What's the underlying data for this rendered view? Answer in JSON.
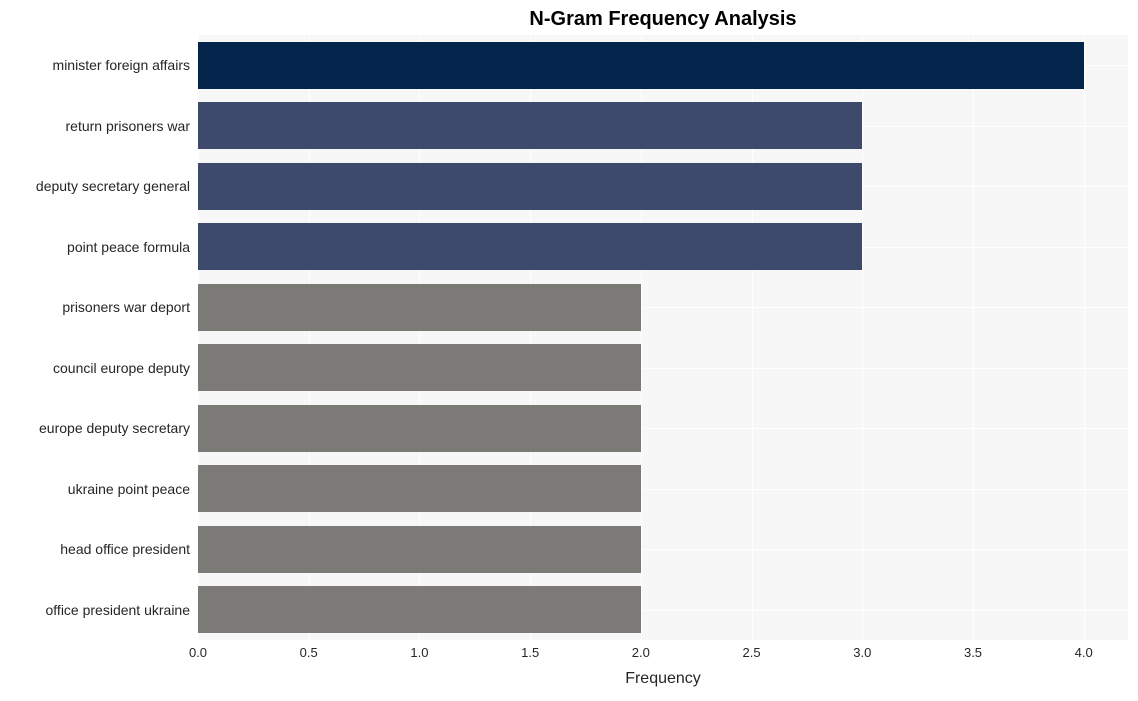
{
  "chart": {
    "type": "bar-horizontal",
    "title": "N-Gram Frequency Analysis",
    "title_fontsize": 20,
    "title_fontweight": "bold",
    "xlabel": "Frequency",
    "xlabel_fontsize": 16,
    "ylabel_fontsize": 14,
    "background_color": "#f7f7f7",
    "grid_color": "#ffffff",
    "xlim": [
      0,
      4.2
    ],
    "xticks": [
      0.0,
      0.5,
      1.0,
      1.5,
      2.0,
      2.5,
      3.0,
      3.5,
      4.0
    ],
    "xtick_labels": [
      "0.0",
      "0.5",
      "1.0",
      "1.5",
      "2.0",
      "2.5",
      "3.0",
      "3.5",
      "4.0"
    ],
    "xtick_fontsize": 13,
    "bar_height_ratio": 0.78,
    "categories": [
      "minister foreign affairs",
      "return prisoners war",
      "deputy secretary general",
      "point peace formula",
      "prisoners war deport",
      "council europe deputy",
      "europe deputy secretary",
      "ukraine point peace",
      "head office president",
      "office president ukraine"
    ],
    "values": [
      4,
      3,
      3,
      3,
      2,
      2,
      2,
      2,
      2,
      2
    ],
    "bar_colors": [
      "#03254c",
      "#3e4a6b",
      "#3e4a6b",
      "#3e4a6b",
      "#7c7a76",
      "#7c7a76",
      "#7c7a76",
      "#7c7a76",
      "#7c7a76",
      "#7c7a76"
    ]
  }
}
